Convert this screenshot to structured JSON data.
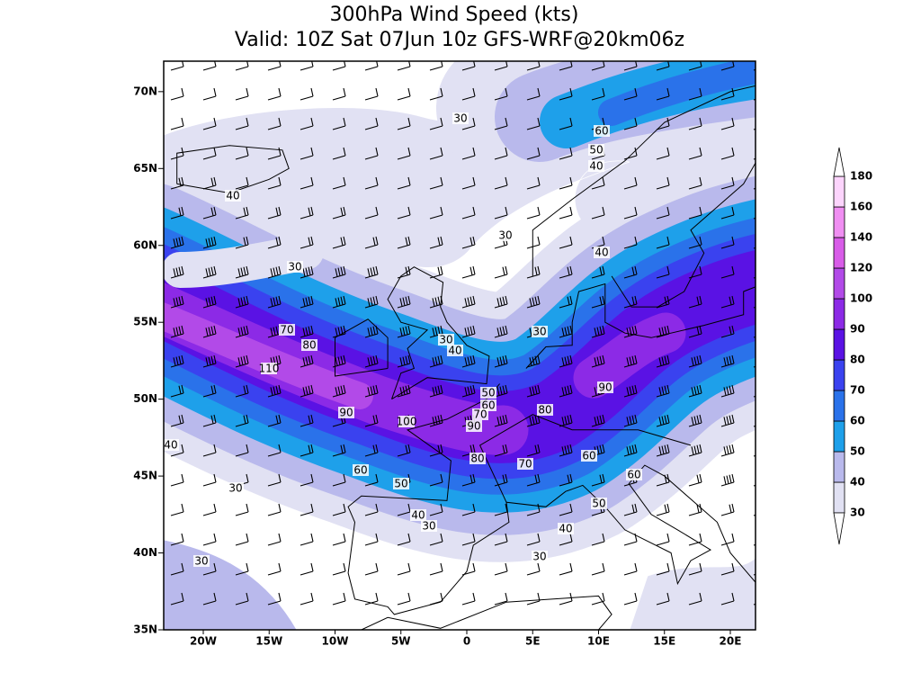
{
  "title": [
    "300hPa Wind Speed (kts)",
    "Valid: 10Z Sat 07Jun 10z GFS-WRF@20km06z"
  ],
  "lat_labels": [
    "70N",
    "65N",
    "60N",
    "55N",
    "50N",
    "45N",
    "40N",
    "35N"
  ],
  "lon_labels": [
    "20W",
    "15W",
    "10W",
    "5W",
    "0",
    "5E",
    "10E",
    "15E",
    "20E"
  ],
  "legend": {
    "levels": [
      30,
      40,
      50,
      60,
      70,
      80,
      90,
      100,
      120,
      140,
      160,
      180
    ],
    "colors": [
      "#e1e1f3",
      "#b9b9ec",
      "#1ea0ea",
      "#2a72ea",
      "#3a42ef",
      "#5a12e4",
      "#8c2ae6",
      "#b24ae8",
      "#d85ce8",
      "#f08ef2",
      "#fcd4fc"
    ]
  },
  "contour_labels": [
    30,
    60,
    50,
    40,
    40,
    30,
    40,
    30,
    70,
    80,
    30,
    30,
    40,
    110,
    50,
    60,
    70,
    90,
    90,
    100,
    90,
    80,
    40,
    80,
    70,
    60,
    60,
    60,
    50,
    30,
    50,
    40,
    30,
    40,
    30,
    30
  ]
}
